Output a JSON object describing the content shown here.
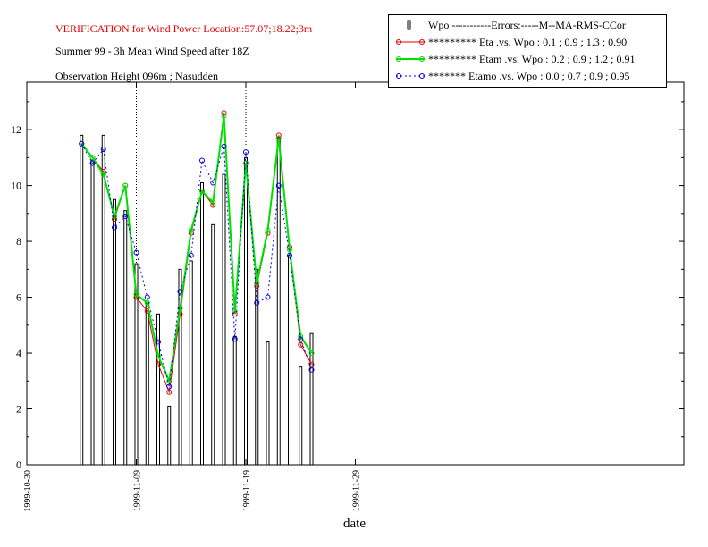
{
  "header": {
    "title": "VERIFICATION for Wind Power Location:57.07;18.22;3m",
    "subtitle": "Summer 99 - 3h Mean Wind Speed after 18Z",
    "subtitle2": "Observation Height 096m ; Nasudden"
  },
  "legend": {
    "header": "Wpo -----------Errors:-----M--MA-RMS-CCor",
    "items": [
      "********* Eta .vs. Wpo : 0.1 ; 0.9 ; 1.3 ; 0.90",
      "********* Etam .vs. Wpo : 0.2 ; 0.9 ; 1.2 ; 0.91",
      "******* Etamo .vs. Wpo : 0.0 ; 0.7 ; 0.9 ; 0.95"
    ]
  },
  "colors": {
    "eta": "#e00000",
    "etam": "#00e000",
    "etamo": "#0000e0",
    "bars": "#000000"
  },
  "chart_data": {
    "type": "bar",
    "xlabel": "date",
    "ylabel": "",
    "ylim": [
      0,
      13.7
    ],
    "xlim_days": [
      0,
      60
    ],
    "x_ticks": [
      "1999-10-30",
      "1999-11-09",
      "1999-11-19",
      "1999-11-29"
    ],
    "y_ticks": [
      0,
      2,
      4,
      6,
      8,
      10,
      12
    ],
    "vlines": [
      "1999-11-09",
      "1999-11-19"
    ],
    "x": [
      "1999-11-04",
      "1999-11-05",
      "1999-11-06",
      "1999-11-07",
      "1999-11-08",
      "1999-11-09",
      "1999-11-10",
      "1999-11-11",
      "1999-11-12",
      "1999-11-13",
      "1999-11-14",
      "1999-11-15",
      "1999-11-16",
      "1999-11-17",
      "1999-11-18",
      "1999-11-19",
      "1999-11-20",
      "1999-11-21",
      "1999-11-22",
      "1999-11-23",
      "1999-11-24",
      "1999-11-25"
    ],
    "series": [
      {
        "name": "Wpo",
        "kind": "bar",
        "values": [
          11.8,
          10.9,
          11.8,
          9.5,
          9.1,
          7.2,
          5.8,
          5.4,
          2.1,
          7.0,
          7.3,
          10.1,
          8.6,
          10.4,
          4.6,
          11.0,
          7.0,
          4.4,
          11.7,
          7.5,
          3.5,
          4.7
        ]
      },
      {
        "name": "Eta",
        "kind": "line",
        "values": [
          11.5,
          11.0,
          10.5,
          8.8,
          10.0,
          6.0,
          5.5,
          3.6,
          2.6,
          5.4,
          8.3,
          9.8,
          9.3,
          12.6,
          5.4,
          10.8,
          6.4,
          8.3,
          11.8,
          7.8,
          4.3,
          3.6
        ]
      },
      {
        "name": "Etam",
        "kind": "line",
        "values": [
          11.5,
          11.0,
          10.4,
          8.9,
          10.0,
          6.1,
          5.8,
          3.9,
          3.0,
          5.6,
          8.4,
          9.8,
          9.4,
          12.5,
          5.5,
          10.8,
          6.5,
          8.4,
          11.7,
          7.7,
          4.6,
          4.0
        ]
      },
      {
        "name": "Etamo",
        "kind": "line",
        "values": [
          11.5,
          10.8,
          11.3,
          8.5,
          8.9,
          7.6,
          6.0,
          4.4,
          2.8,
          6.2,
          7.5,
          10.9,
          10.1,
          11.4,
          4.5,
          11.2,
          5.8,
          6.0,
          10.0,
          7.5,
          4.5,
          3.4
        ]
      }
    ]
  }
}
